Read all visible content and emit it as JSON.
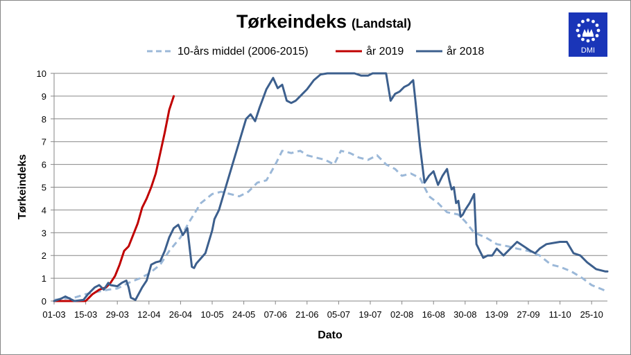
{
  "chart_data": {
    "type": "line",
    "title": "Tørkeindeks",
    "subtitle": "(Landstal)",
    "xlabel": "Dato",
    "ylabel": "Tørkeindeks",
    "ylim": [
      0,
      10
    ],
    "yticks": [
      0,
      1,
      2,
      3,
      4,
      5,
      6,
      7,
      8,
      9,
      10
    ],
    "xlim": [
      "2019-03-01",
      "2019-11-01"
    ],
    "xticks": [
      "01-03",
      "15-03",
      "29-03",
      "12-04",
      "26-04",
      "10-05",
      "24-05",
      "07-06",
      "21-06",
      "05-07",
      "19-07",
      "02-08",
      "16-08",
      "30-08",
      "13-09",
      "27-09",
      "11-10",
      "25-10"
    ],
    "grid": "horizontal",
    "legend_position": "top",
    "logo": {
      "text": "DMI",
      "background": "#1a35b8"
    },
    "series": [
      {
        "name": "10-års middel (2006-2015)",
        "color": "#9bb8d8",
        "dashed": true,
        "x": [
          "2019-03-01",
          "2019-03-05",
          "2019-03-10",
          "2019-03-15",
          "2019-03-20",
          "2019-03-25",
          "2019-03-29",
          "2019-04-03",
          "2019-04-08",
          "2019-04-12",
          "2019-04-17",
          "2019-04-21",
          "2019-04-26",
          "2019-04-30",
          "2019-05-05",
          "2019-05-10",
          "2019-05-14",
          "2019-05-18",
          "2019-05-22",
          "2019-05-26",
          "2019-05-30",
          "2019-06-03",
          "2019-06-07",
          "2019-06-10",
          "2019-06-14",
          "2019-06-18",
          "2019-06-21",
          "2019-06-25",
          "2019-06-29",
          "2019-07-03",
          "2019-07-06",
          "2019-07-10",
          "2019-07-14",
          "2019-07-18",
          "2019-07-22",
          "2019-07-26",
          "2019-07-30",
          "2019-08-02",
          "2019-08-06",
          "2019-08-10",
          "2019-08-14",
          "2019-08-18",
          "2019-08-22",
          "2019-08-27",
          "2019-08-30",
          "2019-09-03",
          "2019-09-08",
          "2019-09-13",
          "2019-09-18",
          "2019-09-22",
          "2019-09-27",
          "2019-10-02",
          "2019-10-07",
          "2019-10-11",
          "2019-10-16",
          "2019-10-21",
          "2019-10-25",
          "2019-10-30",
          "2019-11-01"
        ],
        "values": [
          0.05,
          0.1,
          0.15,
          0.3,
          0.4,
          0.5,
          0.55,
          0.8,
          1.0,
          1.2,
          1.6,
          2.2,
          2.8,
          3.5,
          4.3,
          4.7,
          4.8,
          4.7,
          4.6,
          4.8,
          5.2,
          5.3,
          6.0,
          6.6,
          6.5,
          6.6,
          6.4,
          6.3,
          6.2,
          6.0,
          6.6,
          6.5,
          6.3,
          6.2,
          6.4,
          6.0,
          5.8,
          5.5,
          5.6,
          5.4,
          4.6,
          4.3,
          3.9,
          3.8,
          3.5,
          3.0,
          2.8,
          2.5,
          2.4,
          2.3,
          2.2,
          2.0,
          1.6,
          1.5,
          1.3,
          1.0,
          0.7,
          0.5,
          0.4
        ]
      },
      {
        "name": "år 2019",
        "color": "#c00000",
        "dashed": false,
        "x": [
          "2019-03-01",
          "2019-03-04",
          "2019-03-08",
          "2019-03-12",
          "2019-03-15",
          "2019-03-18",
          "2019-03-21",
          "2019-03-24",
          "2019-03-26",
          "2019-03-28",
          "2019-03-30",
          "2019-04-01",
          "2019-04-03",
          "2019-04-05",
          "2019-04-07",
          "2019-04-09",
          "2019-04-11",
          "2019-04-13",
          "2019-04-15",
          "2019-04-17",
          "2019-04-19",
          "2019-04-21",
          "2019-04-23"
        ],
        "values": [
          0,
          0,
          0,
          0,
          0,
          0.3,
          0.5,
          0.6,
          0.8,
          1.1,
          1.6,
          2.2,
          2.4,
          2.9,
          3.4,
          4.1,
          4.5,
          5.0,
          5.6,
          6.5,
          7.4,
          8.4,
          9.0
        ]
      },
      {
        "name": "år 2018",
        "color": "#3c5f8d",
        "dashed": false,
        "x": [
          "2019-03-01",
          "2019-03-04",
          "2019-03-06",
          "2019-03-10",
          "2019-03-14",
          "2019-03-16",
          "2019-03-19",
          "2019-03-21",
          "2019-03-23",
          "2019-03-25",
          "2019-03-26",
          "2019-03-29",
          "2019-03-31",
          "2019-04-02",
          "2019-04-03",
          "2019-04-04",
          "2019-04-06",
          "2019-04-09",
          "2019-04-11",
          "2019-04-13",
          "2019-04-15",
          "2019-04-17",
          "2019-04-19",
          "2019-04-21",
          "2019-04-23",
          "2019-04-25",
          "2019-04-27",
          "2019-04-29",
          "2019-05-01",
          "2019-05-02",
          "2019-05-03",
          "2019-05-07",
          "2019-05-10",
          "2019-05-11",
          "2019-05-13",
          "2019-05-16",
          "2019-05-19",
          "2019-05-22",
          "2019-05-25",
          "2019-05-27",
          "2019-05-29",
          "2019-05-31",
          "2019-06-03",
          "2019-06-06",
          "2019-06-08",
          "2019-06-10",
          "2019-06-12",
          "2019-06-14",
          "2019-06-16",
          "2019-06-17",
          "2019-06-19",
          "2019-06-21",
          "2019-06-24",
          "2019-06-27",
          "2019-06-30",
          "2019-07-02",
          "2019-07-04",
          "2019-07-06",
          "2019-07-09",
          "2019-07-12",
          "2019-07-15",
          "2019-07-18",
          "2019-07-20",
          "2019-07-23",
          "2019-07-26",
          "2019-07-28",
          "2019-07-30",
          "2019-08-01",
          "2019-08-03",
          "2019-08-05",
          "2019-08-06",
          "2019-08-07",
          "2019-08-08",
          "2019-08-10",
          "2019-08-12",
          "2019-08-14",
          "2019-08-16",
          "2019-08-18",
          "2019-08-20",
          "2019-08-22",
          "2019-08-23",
          "2019-08-24",
          "2019-08-25",
          "2019-08-26",
          "2019-08-27",
          "2019-08-28",
          "2019-08-29",
          "2019-08-30",
          "2019-09-01",
          "2019-09-03",
          "2019-09-04",
          "2019-09-05",
          "2019-09-07",
          "2019-09-09",
          "2019-09-11",
          "2019-09-13",
          "2019-09-16",
          "2019-09-19",
          "2019-09-22",
          "2019-09-25",
          "2019-09-28",
          "2019-09-30",
          "2019-10-02",
          "2019-10-05",
          "2019-10-08",
          "2019-10-11",
          "2019-10-14",
          "2019-10-17",
          "2019-10-20",
          "2019-10-23",
          "2019-10-25",
          "2019-10-27",
          "2019-10-29",
          "2019-10-31",
          "2019-11-01"
        ],
        "values": [
          0,
          0.1,
          0.2,
          0.0,
          0.05,
          0.3,
          0.6,
          0.7,
          0.5,
          0.8,
          0.7,
          0.65,
          0.8,
          0.9,
          0.6,
          0.15,
          0.05,
          0.6,
          0.9,
          1.6,
          1.7,
          1.75,
          2.2,
          2.8,
          3.2,
          3.35,
          2.9,
          3.2,
          1.5,
          1.45,
          1.65,
          2.1,
          3.1,
          3.6,
          4.0,
          5.0,
          6.0,
          7.0,
          8.0,
          8.2,
          7.9,
          8.5,
          9.3,
          9.8,
          9.35,
          9.5,
          8.8,
          8.7,
          8.8,
          8.9,
          9.1,
          9.3,
          9.7,
          9.95,
          10,
          10,
          10,
          10,
          10,
          10,
          9.9,
          9.9,
          10,
          10,
          10,
          8.8,
          9.1,
          9.2,
          9.4,
          9.5,
          9.6,
          9.7,
          8.8,
          6.8,
          5.2,
          5.5,
          5.7,
          5.1,
          5.5,
          5.8,
          5.3,
          4.9,
          5.0,
          4.3,
          4.4,
          3.7,
          3.8,
          4.0,
          4.3,
          4.7,
          2.5,
          2.3,
          1.9,
          2.0,
          2.0,
          2.3,
          2.0,
          2.3,
          2.6,
          2.4,
          2.2,
          2.1,
          2.3,
          2.5,
          2.55,
          2.6,
          2.6,
          2.1,
          2.0,
          1.7,
          1.55,
          1.4,
          1.35,
          1.3,
          1.3
        ]
      }
    ]
  }
}
